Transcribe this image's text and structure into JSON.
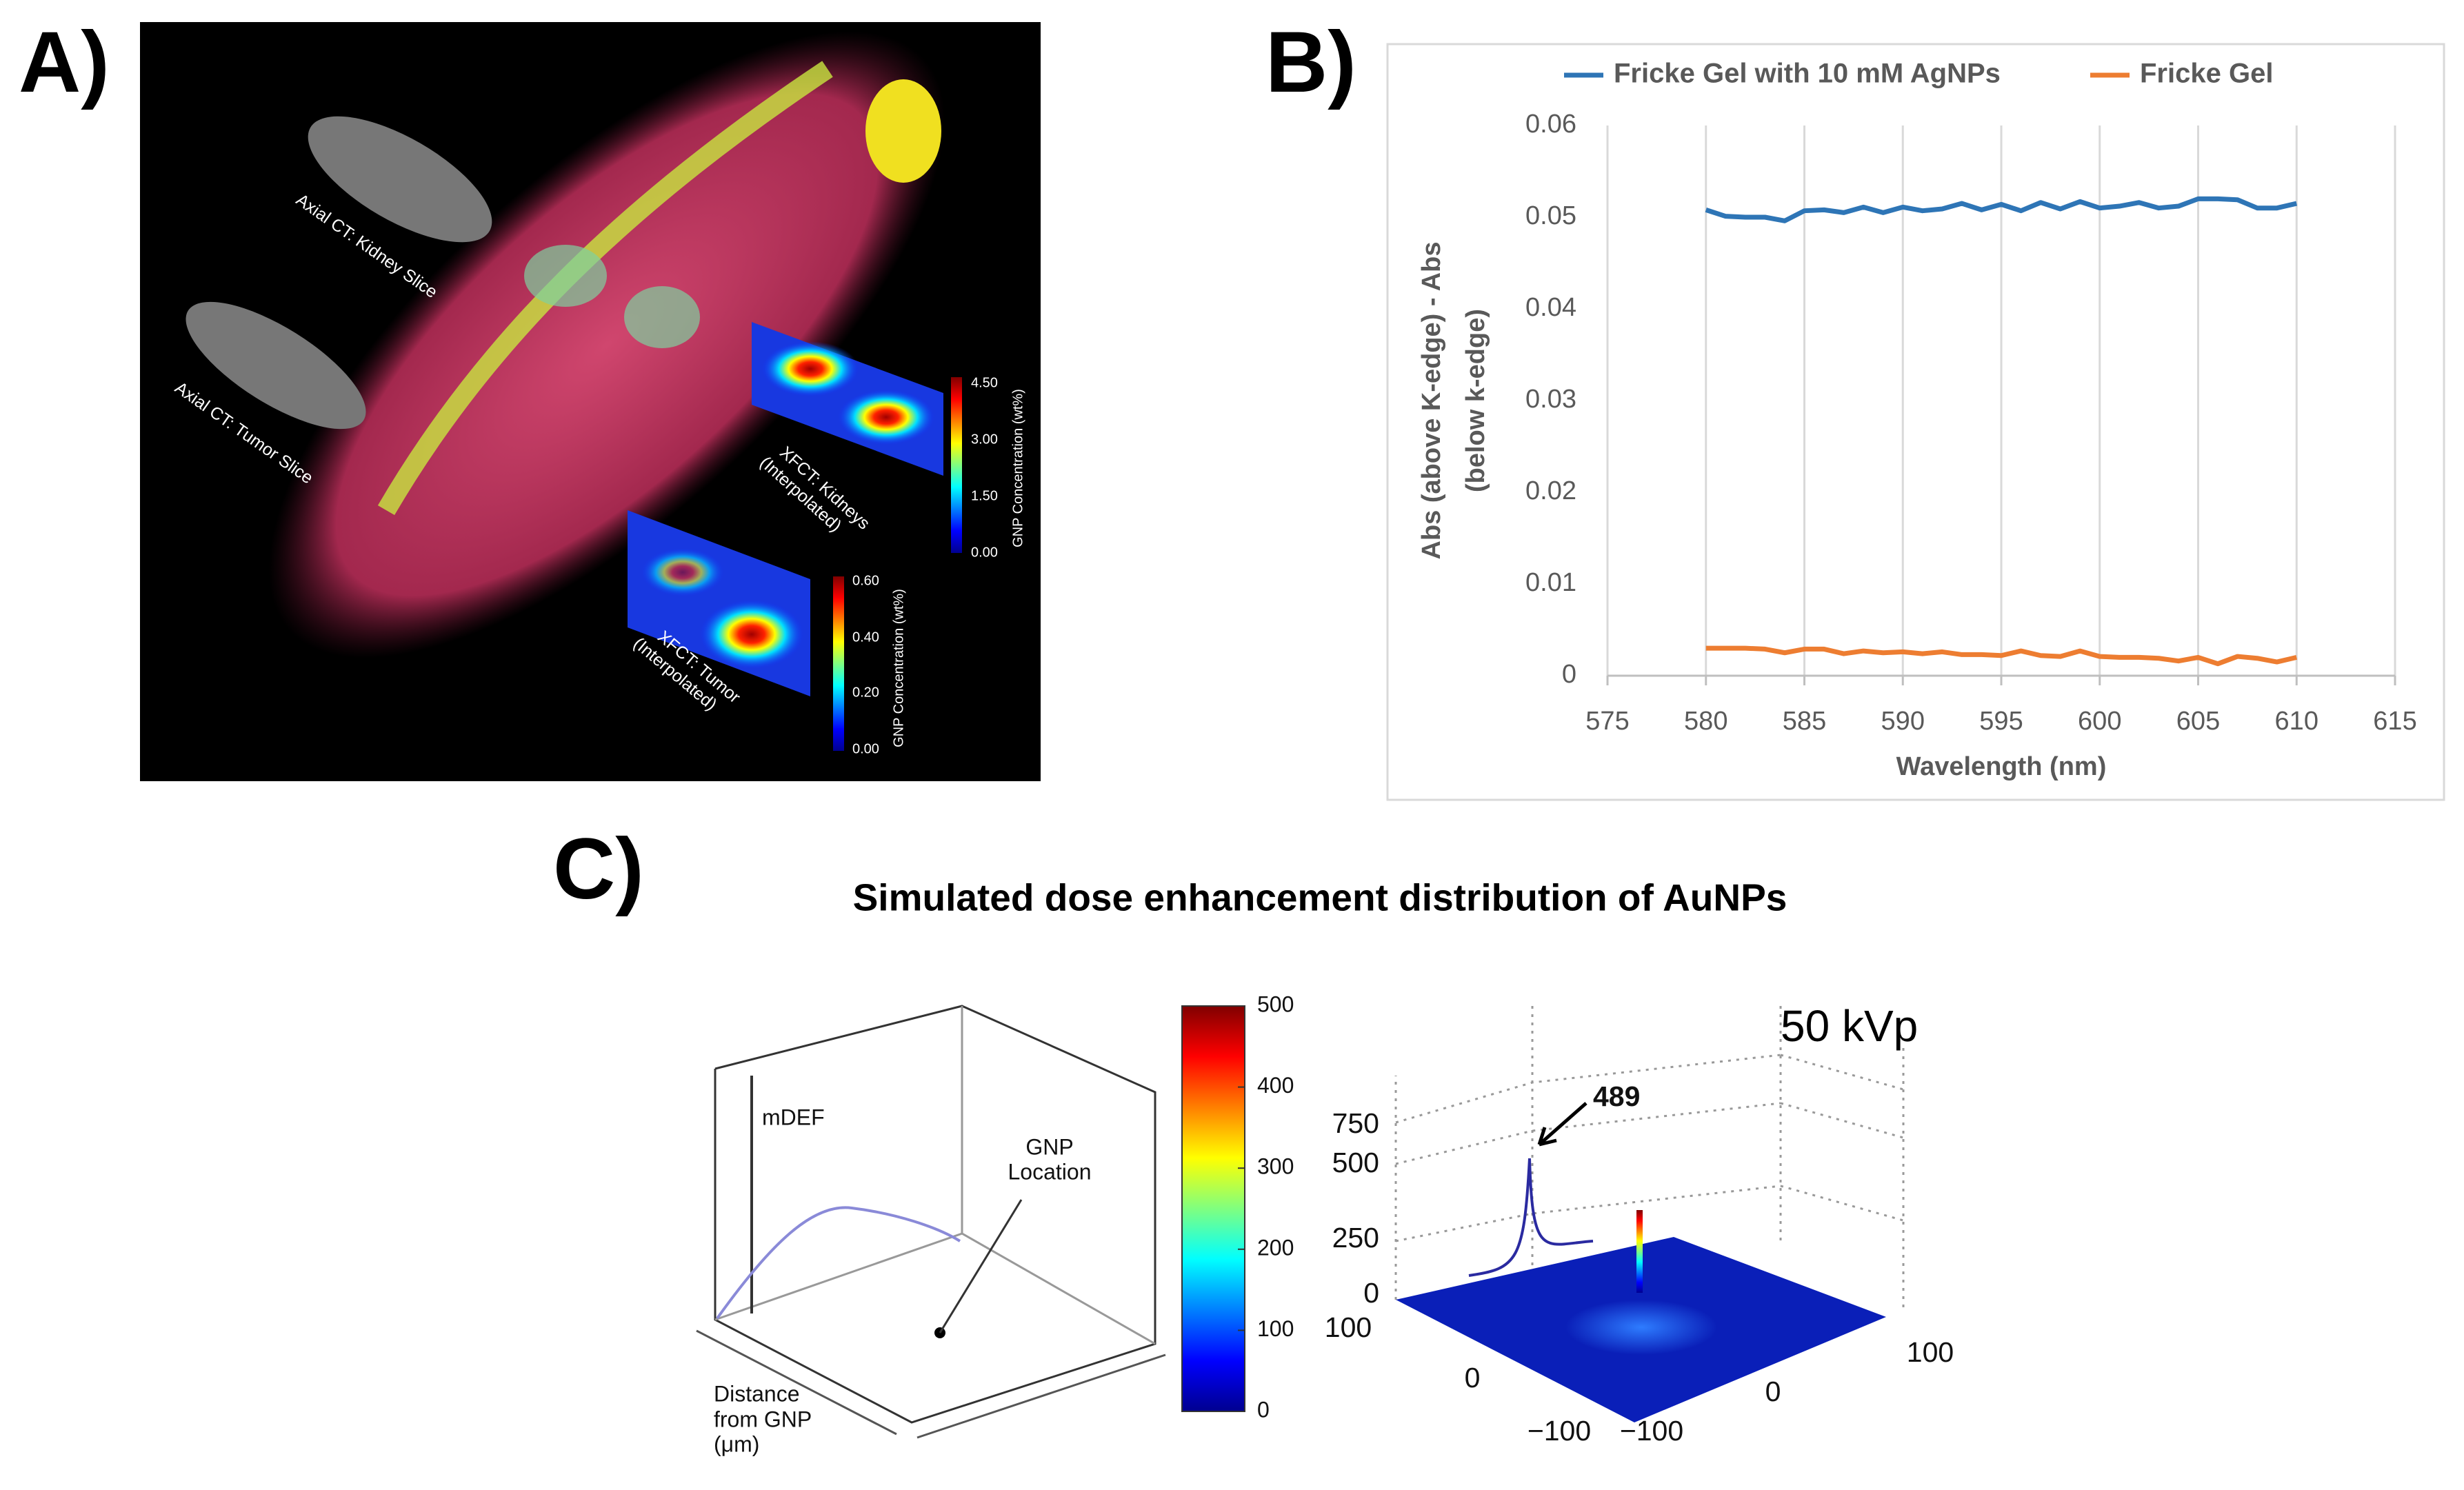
{
  "panel_labels": [
    "A)",
    "B)",
    "C)"
  ],
  "panel_a": {
    "ct_kidney": "Axial CT: Kidney Slice",
    "ct_tumor": "Axial CT: Tumor Slice",
    "xfct_kidneys": [
      "XFCT: Kidneys",
      "(Interpolated)"
    ],
    "xfct_tumor": [
      "XFCT: Tumor",
      "(Interpolated)"
    ],
    "kidney_colorbar": {
      "title": "GNP Concentration (wt%)",
      "labels": [
        "4.50",
        "3.00",
        "1.50",
        "0.00"
      ]
    },
    "tumor_colorbar": {
      "title": "GNP Concentration (wt%)",
      "labels": [
        "0.60",
        "0.40",
        "0.20",
        "0.00"
      ]
    }
  },
  "chart_data": {
    "type": "line",
    "x_label": "Wavelength (nm)",
    "y_label": [
      "Abs (above K-edge) - Abs",
      "(below k-edge)"
    ],
    "x": [
      580,
      581,
      582,
      583,
      584,
      585,
      586,
      587,
      588,
      589,
      590,
      591,
      592,
      593,
      594,
      595,
      596,
      597,
      598,
      599,
      600,
      601,
      602,
      603,
      604,
      605,
      606,
      607,
      608,
      609,
      610
    ],
    "series": [
      {
        "name": "Fricke Gel with 10 mM AgNPs",
        "color": "#2e75b6",
        "values": [
          0.0508,
          0.0501,
          0.05,
          0.05,
          0.0496,
          0.0507,
          0.0508,
          0.0505,
          0.0511,
          0.0505,
          0.0511,
          0.0507,
          0.0509,
          0.0515,
          0.0508,
          0.0514,
          0.0507,
          0.0516,
          0.0509,
          0.0517,
          0.051,
          0.0512,
          0.0516,
          0.051,
          0.0512,
          0.052,
          0.052,
          0.0519,
          0.051,
          0.051,
          0.0515
        ]
      },
      {
        "name": "Fricke Gel",
        "color": "#ed7d31",
        "values": [
          0.003,
          0.003,
          0.003,
          0.0029,
          0.0025,
          0.0029,
          0.0029,
          0.0024,
          0.0027,
          0.0025,
          0.0026,
          0.0024,
          0.0026,
          0.0023,
          0.0023,
          0.0022,
          0.0027,
          0.0022,
          0.0021,
          0.0027,
          0.0021,
          0.002,
          0.002,
          0.0019,
          0.0016,
          0.002,
          0.0013,
          0.0021,
          0.0019,
          0.0015,
          0.002
        ]
      }
    ],
    "xlim": [
      575,
      615
    ],
    "xticks": [
      575,
      580,
      585,
      590,
      595,
      600,
      605,
      610,
      615
    ],
    "ylim": [
      0,
      0.06
    ],
    "yticks": [
      0,
      0.01,
      0.02,
      0.03,
      0.04,
      0.05,
      0.06
    ],
    "grid": "x",
    "legend": "top"
  },
  "panel_c": {
    "title": "Simulated dose enhancement distribution of AuNPs",
    "left": {
      "mdef": "mDEF",
      "gnp": [
        "GNP",
        "Location"
      ],
      "distance": [
        "Distance",
        "from GNP",
        "(μm)"
      ]
    },
    "colorbar_ticks": [
      0,
      100,
      200,
      300,
      400,
      500
    ],
    "colorbar_lim": [
      0,
      500
    ],
    "right": {
      "title": "50 kVp",
      "peak": "489",
      "z_ticks": [
        "750",
        "500",
        "250",
        "0"
      ],
      "y_ticks": [
        "100",
        "0",
        "−100"
      ],
      "x_ticks": [
        "−100",
        "0",
        "100"
      ]
    }
  }
}
